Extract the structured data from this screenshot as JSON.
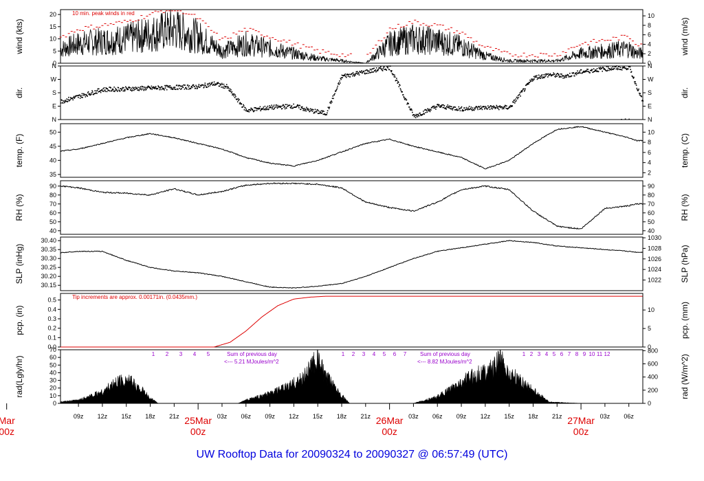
{
  "footer_title": "UW Rooftop Data for 20090324  to  20090327 @ 06:57:49  (UTC)",
  "colors": {
    "title": "#0000dd",
    "date": "#dd0000",
    "peak": "#dd0000",
    "precip": "#dd0000",
    "note": "#dd0000",
    "solar_text": "#9900cc",
    "data": "#000000"
  },
  "time_axis": {
    "ticks": [
      "09z",
      "12z",
      "15z",
      "18z",
      "21z",
      "03z",
      "06z",
      "09z",
      "12z",
      "15z",
      "18z",
      "21z",
      "03z",
      "06z",
      "09z",
      "12z",
      "15z",
      "18z",
      "21z",
      "03z",
      "06z"
    ],
    "date_labels": [
      {
        "day": "Mar",
        "hour": "00z"
      },
      {
        "day": "25Mar",
        "hour": "00z"
      },
      {
        "day": "26Mar",
        "hour": "00z"
      },
      {
        "day": "27Mar",
        "hour": "00z"
      }
    ]
  },
  "chart_data": [
    {
      "type": "line",
      "name": "wind",
      "ylabel": "wind (kts)",
      "ylabel_right": "wind (m/s)",
      "yticks": [
        0,
        5,
        10,
        15,
        20
      ],
      "yticks_right": [
        0,
        2,
        4,
        6,
        8,
        10
      ],
      "ylim": [
        0,
        22
      ],
      "note": "10 min. peak winds in red",
      "series": [
        {
          "name": "wind",
          "x_hours": [
            0,
            3,
            6,
            9,
            12,
            15,
            18,
            21,
            24,
            27,
            30,
            33,
            36,
            39,
            42,
            45,
            48,
            51,
            54,
            57,
            60,
            63,
            66,
            69,
            72,
            75,
            78,
            79
          ],
          "values": [
            4,
            4,
            5,
            8,
            9,
            10,
            12,
            14,
            11,
            5,
            8,
            6,
            4,
            2,
            1,
            0,
            8,
            10,
            9,
            7,
            3,
            1,
            1,
            1,
            4,
            5,
            6,
            4
          ]
        }
      ]
    },
    {
      "type": "scatter",
      "name": "dir",
      "ylabel": "dir.",
      "ylabel_right": "dir.",
      "yticks": [
        "N",
        "E",
        "S",
        "W",
        "N"
      ],
      "yticks_right": [
        "N",
        "E",
        "S",
        "W",
        "N"
      ]
    },
    {
      "type": "line",
      "name": "temp",
      "ylabel": "temp. (F)",
      "ylabel_right": "temp. (C)",
      "yticks": [
        35,
        40,
        45,
        50
      ],
      "yticks_right": [
        2,
        4,
        6,
        8,
        10
      ],
      "ylim": [
        34,
        53
      ],
      "series": [
        {
          "name": "temp",
          "x_hours": [
            0,
            3,
            6,
            9,
            12,
            15,
            18,
            21,
            24,
            27,
            30,
            33,
            36,
            39,
            42,
            45,
            48,
            51,
            54,
            57,
            60,
            63,
            66,
            69,
            72,
            75,
            78,
            79
          ],
          "values": [
            43,
            42.5,
            43,
            44,
            46,
            48,
            49.5,
            48,
            46,
            44,
            41,
            39,
            38,
            40,
            43,
            46,
            47.5,
            45,
            43,
            41,
            37,
            40,
            46,
            51,
            52,
            50,
            48,
            47
          ]
        }
      ]
    },
    {
      "type": "line",
      "name": "rh",
      "ylabel": "RH (%)",
      "ylabel_right": "RH (%)",
      "yticks": [
        40,
        50,
        60,
        70,
        80,
        90
      ],
      "yticks_right": [
        40,
        50,
        60,
        70,
        80,
        90
      ],
      "ylim": [
        36,
        96
      ],
      "series": [
        {
          "name": "rh",
          "x_hours": [
            0,
            3,
            6,
            9,
            12,
            15,
            18,
            21,
            24,
            27,
            30,
            33,
            36,
            39,
            42,
            45,
            48,
            51,
            54,
            57,
            60,
            63,
            66,
            69,
            72,
            75,
            78,
            79
          ],
          "values": [
            89,
            92,
            91,
            88,
            83,
            82,
            80,
            87,
            80,
            84,
            91,
            93,
            93,
            92,
            88,
            72,
            66,
            62,
            72,
            86,
            90,
            86,
            62,
            45,
            42,
            65,
            68,
            70
          ]
        }
      ]
    },
    {
      "type": "line",
      "name": "slp",
      "ylabel": "SLP (inHg)",
      "ylabel_right": "SLP (hPa)",
      "yticks": [
        "30.15",
        "30.20",
        "30.25",
        "30.30",
        "30.35",
        "30.40"
      ],
      "yticks_right": [
        1022,
        1024,
        1026,
        1028,
        1030
      ],
      "ylim": [
        30.12,
        30.42
      ],
      "series": [
        {
          "name": "slp",
          "x_hours": [
            0,
            3,
            6,
            9,
            12,
            15,
            18,
            21,
            24,
            27,
            30,
            33,
            36,
            39,
            42,
            45,
            48,
            51,
            54,
            57,
            60,
            63,
            66,
            69,
            72,
            75,
            78,
            79
          ],
          "values": [
            30.3,
            30.31,
            30.33,
            30.34,
            30.34,
            30.29,
            30.25,
            30.23,
            30.22,
            30.2,
            30.17,
            30.14,
            30.135,
            30.145,
            30.16,
            30.2,
            30.25,
            30.3,
            30.34,
            30.36,
            30.38,
            30.4,
            30.39,
            30.37,
            30.36,
            30.35,
            30.34,
            30.335
          ]
        }
      ]
    },
    {
      "type": "line",
      "name": "pcp",
      "ylabel": "pcp. (in)",
      "ylabel_right": "pcp. (mm)",
      "yticks": [
        "0.0",
        "0.1",
        "0.2",
        "0.3",
        "0.4",
        "0.5"
      ],
      "yticks_right": [
        0,
        5,
        10
      ],
      "ylim": [
        0,
        0.57
      ],
      "note": "Tip increments are approx. 0.00171in. (0.0435mm.)",
      "series": [
        {
          "name": "pcp",
          "x_hours": [
            0,
            24,
            26,
            28,
            30,
            32,
            34,
            36,
            38,
            40,
            79
          ],
          "values": [
            0,
            0,
            0,
            0.05,
            0.17,
            0.32,
            0.44,
            0.51,
            0.53,
            0.54,
            0.54
          ]
        }
      ]
    },
    {
      "type": "area",
      "name": "rad",
      "ylabel": "rad(Lgly/hr)",
      "ylabel_right": "rad (W/m^2)",
      "yticks": [
        0,
        10,
        20,
        30,
        40,
        50,
        60,
        70
      ],
      "yticks_right": [
        0,
        200,
        400,
        600,
        800
      ],
      "ylim": [
        0,
        70
      ],
      "series": [
        {
          "name": "rad",
          "x_hours": [
            5,
            9,
            12,
            14,
            15,
            16,
            17,
            18,
            19,
            27,
            29,
            30,
            33,
            35,
            37,
            38,
            39,
            40,
            41,
            42,
            43,
            45,
            51,
            54,
            56,
            58,
            60,
            61,
            62,
            63,
            64,
            65,
            66,
            67,
            68,
            72
          ],
          "values": [
            0,
            5,
            18,
            35,
            38,
            30,
            20,
            8,
            0,
            0,
            0,
            5,
            15,
            25,
            38,
            55,
            70,
            40,
            30,
            12,
            0,
            0,
            0,
            10,
            25,
            40,
            50,
            55,
            68,
            45,
            40,
            30,
            20,
            12,
            2,
            0
          ]
        }
      ],
      "hour_labels_day1": [
        "1",
        "2",
        "3",
        "4",
        "5"
      ],
      "hour_labels_day2": [
        "1",
        "2",
        "3",
        "4",
        "5",
        "6",
        "7"
      ],
      "hour_labels_day3": [
        "1",
        "2",
        "3",
        "4",
        "5",
        "6",
        "7",
        "8",
        "9",
        "10",
        "11",
        "12"
      ],
      "sum_text": "Sum of previous day",
      "sum_day2": "<--- 5.21 MJoules/m^2",
      "sum_day3": "<--- 8.82 MJoules/m^2"
    }
  ]
}
